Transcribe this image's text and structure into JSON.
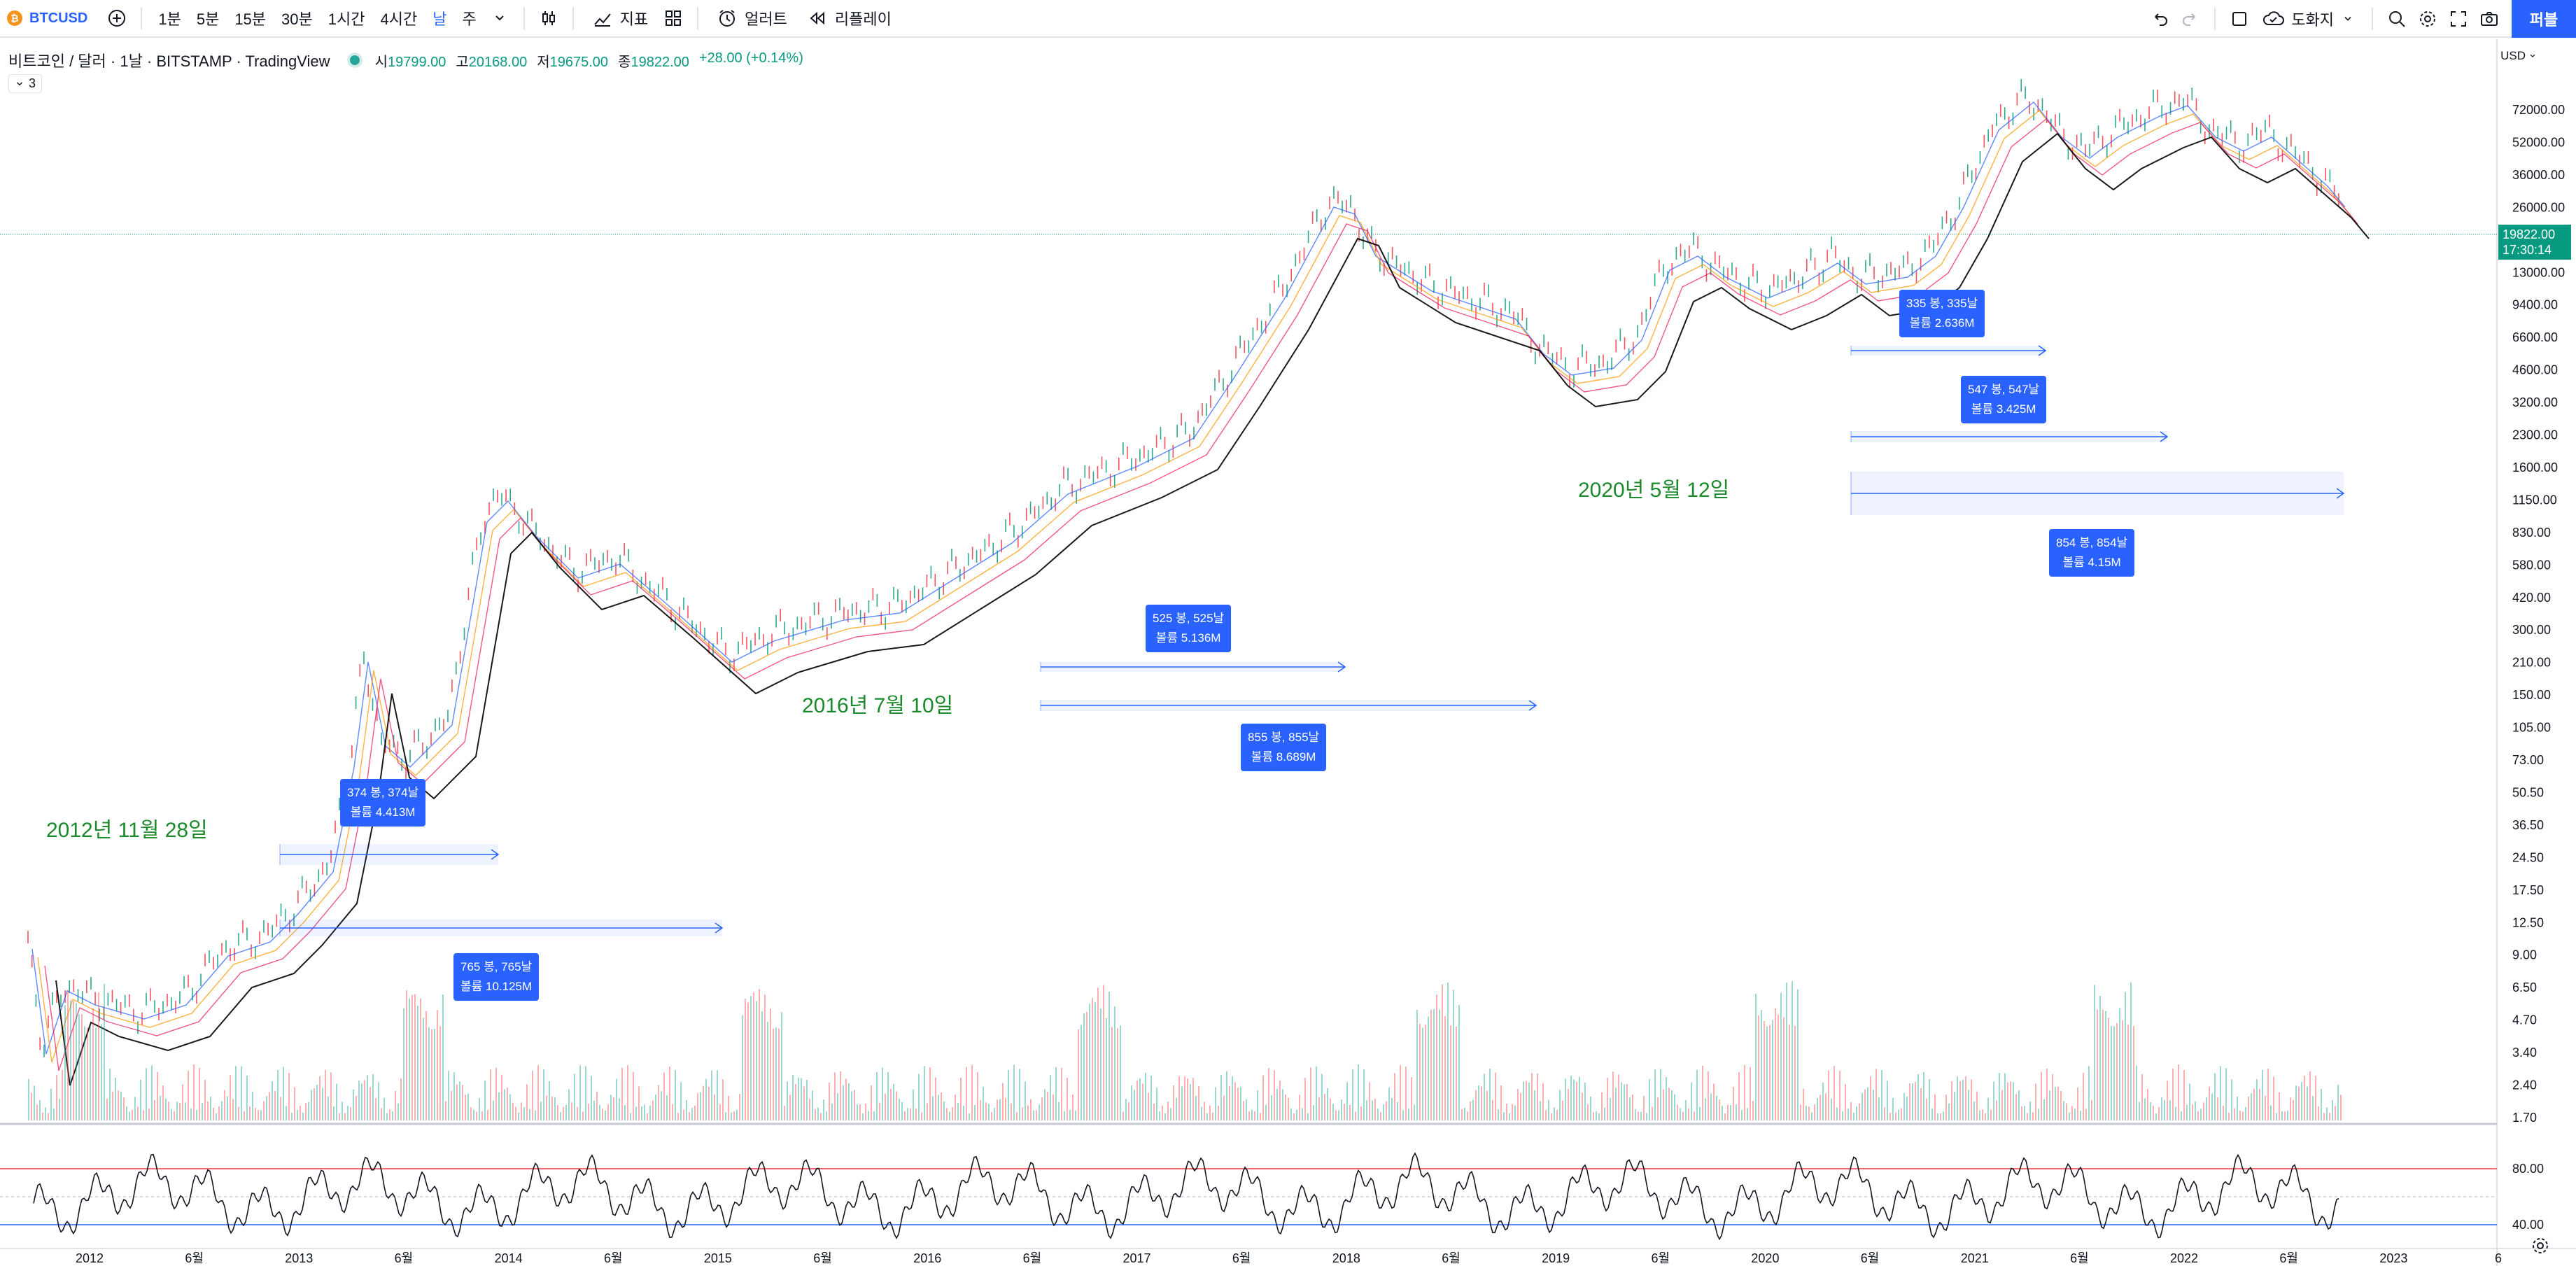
{
  "toolbar": {
    "symbol": "BTCUSD",
    "intervals": [
      "1분",
      "5분",
      "15분",
      "30분",
      "1시간",
      "4시간",
      "날",
      "주"
    ],
    "active_interval": "날",
    "indicators_label": "지표",
    "alerts_label": "얼러트",
    "replay_label": "리플레이",
    "layout_label": "도화지",
    "publish_label": "퍼블"
  },
  "legend": {
    "title": "비트코인 / 달러 · 1날 · BITSTAMP · TradingView",
    "open_label": "시",
    "open": "19799.00",
    "high_label": "고",
    "high": "20168.00",
    "low_label": "저",
    "low": "19675.00",
    "close_label": "종",
    "close": "19822.00",
    "change": "+28.00 (+0.14%)",
    "collapsed_count": "3"
  },
  "price_axis": {
    "currency": "USD",
    "labels": [
      "72000.00",
      "52000.00",
      "36000.00",
      "26000.00",
      "19822.00",
      "13000.00",
      "9400.00",
      "6600.00",
      "4600.00",
      "3200.00",
      "2300.00",
      "1600.00",
      "1150.00",
      "830.00",
      "580.00",
      "420.00",
      "300.00",
      "210.00",
      "150.00",
      "105.00",
      "73.00",
      "50.50",
      "36.50",
      "24.50",
      "17.50",
      "12.50",
      "9.00",
      "6.50",
      "4.70",
      "3.40",
      "2.40",
      "1.70"
    ],
    "current_price": "19822.00",
    "countdown": "17:30:14",
    "rsi_labels": [
      "80.00",
      "40.00"
    ]
  },
  "time_axis": {
    "labels": [
      "2012",
      "6월",
      "2013",
      "6월",
      "2014",
      "6월",
      "2015",
      "6월",
      "2016",
      "6월",
      "2017",
      "6월",
      "2018",
      "6월",
      "2019",
      "6월",
      "2020",
      "6월",
      "2021",
      "6월",
      "2022",
      "6월",
      "2023",
      "6"
    ]
  },
  "annotations": {
    "dates": [
      "2012년 11월 28일",
      "2016년 7월 10일",
      "2020년 5월 12일"
    ],
    "callouts": [
      {
        "line1": "374 봉, 374날",
        "line2": "볼륨 4.413M"
      },
      {
        "line1": "765 봉, 765날",
        "line2": "볼륨 10.125M"
      },
      {
        "line1": "525 봉, 525날",
        "line2": "볼륨 5.136M"
      },
      {
        "line1": "855 봉, 855날",
        "line2": "볼륨 8.689M"
      },
      {
        "line1": "335 봉, 335날",
        "line2": "볼륨 2.636M"
      },
      {
        "line1": "547 봉, 547날",
        "line2": "볼륨 3.425M"
      },
      {
        "line1": "854 봉, 854날",
        "line2": "볼륨 4.15M"
      }
    ]
  },
  "colors": {
    "accent": "#2962ff",
    "up": "#089981",
    "down": "#f23645",
    "annotation_text": "#1b8a2b",
    "ma_lines": [
      "#2962ff",
      "#ff9800",
      "#e91e63",
      "#000000"
    ]
  }
}
